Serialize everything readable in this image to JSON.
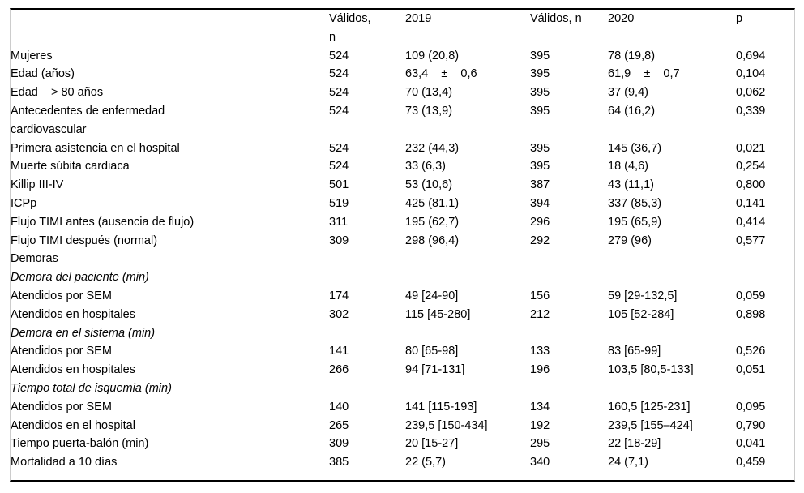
{
  "colors": {
    "rule": "#000000",
    "frame_border": "#cccccc",
    "text": "#000000",
    "background": "#ffffff"
  },
  "table": {
    "headers": {
      "label": "",
      "valid1": "Válidos,\nn",
      "y2019": "2019",
      "valid2": "Válidos, n",
      "y2020": "2020",
      "p": "p"
    },
    "rows": [
      {
        "label": "Mujeres",
        "style": "bold",
        "indent": 0,
        "valid1": "524",
        "y2019": "109 (20,8)",
        "valid2": "395",
        "y2020": "78 (19,8)",
        "p": "0,694"
      },
      {
        "label": "Edad (años)",
        "style": "bold",
        "indent": 0,
        "valid1": "524",
        "y2019": "63,4    ±    0,6",
        "valid2": "395",
        "y2020": "61,9    ±    0,7",
        "p": "0,104"
      },
      {
        "label": "Edad    > 80 años",
        "style": "bold",
        "indent": 0,
        "valid1": "524",
        "y2019": "70 (13,4)",
        "valid2": "395",
        "y2020": "37 (9,4)",
        "p": "0,062"
      },
      {
        "label": "Antecedentes de enfermedad\ncardiovascular",
        "style": "bold",
        "indent": 0,
        "valid1": "524",
        "y2019": "73 (13,9)",
        "valid2": "395",
        "y2020": "64 (16,2)",
        "p": "0,339"
      },
      {
        "label": "Primera asistencia en el hospital",
        "style": "bold",
        "indent": 0,
        "valid1": "524",
        "y2019": "232 (44,3)",
        "valid2": "395",
        "y2020": "145 (36,7)",
        "p": "0,021"
      },
      {
        "label": "Muerte súbita cardiaca",
        "style": "bold",
        "indent": 0,
        "valid1": "524",
        "y2019": "33 (6,3)",
        "valid2": "395",
        "y2020": "18 (4,6)",
        "p": "0,254"
      },
      {
        "label": "Killip III-IV",
        "style": "bold",
        "indent": 0,
        "valid1": "501",
        "y2019": "53 (10,6)",
        "valid2": "387",
        "y2020": "43 (11,1)",
        "p": "0,800"
      },
      {
        "label": "ICPp",
        "style": "bold",
        "indent": 0,
        "valid1": "519",
        "y2019": "425 (81,1)",
        "valid2": "394",
        "y2020": "337 (85,3)",
        "p": "0,141"
      },
      {
        "label": "Flujo TIMI antes (ausencia de flujo)",
        "style": "bold",
        "indent": 0,
        "valid1": "311",
        "y2019": "195 (62,7)",
        "valid2": "296",
        "y2020": "195 (65,9)",
        "p": "0,414"
      },
      {
        "label": "Flujo TIMI después (normal)",
        "style": "bold",
        "indent": 0,
        "valid1": "309",
        "y2019": "298 (96,4)",
        "valid2": "292",
        "y2020": "279 (96)",
        "p": "0,577"
      },
      {
        "label": "Demoras",
        "style": "bold",
        "indent": 0,
        "valid1": "",
        "y2019": "",
        "valid2": "",
        "y2020": "",
        "p": ""
      },
      {
        "label": "Demora del paciente (min)",
        "style": "italic",
        "indent": 1,
        "valid1": "",
        "y2019": "",
        "valid2": "",
        "y2020": "",
        "p": ""
      },
      {
        "label": "Atendidos por SEM",
        "style": "plain",
        "indent": 2,
        "valid1": "174",
        "y2019": "49 [24-90]",
        "valid2": "156",
        "y2020": "59 [29-132,5]",
        "p": "0,059"
      },
      {
        "label": "Atendidos en hospitales",
        "style": "plain",
        "indent": 2,
        "valid1": "302",
        "y2019": "115 [45-280]",
        "valid2": "212",
        "y2020": "105 [52-284]",
        "p": "0,898"
      },
      {
        "label": "Demora en el sistema (min)",
        "style": "italic",
        "indent": 1,
        "valid1": "",
        "y2019": "",
        "valid2": "",
        "y2020": "",
        "p": ""
      },
      {
        "label": "Atendidos por SEM",
        "style": "plain",
        "indent": 2,
        "valid1": "141",
        "y2019": "80 [65-98]",
        "valid2": "133",
        "y2020": "83 [65-99]",
        "p": "0,526"
      },
      {
        "label": "Atendidos en hospitales",
        "style": "plain",
        "indent": 2,
        "valid1": "266",
        "y2019": "94 [71-131]",
        "valid2": "196",
        "y2020": "103,5 [80,5-133]",
        "p": "0,051"
      },
      {
        "label": "Tiempo total de isquemia (min)",
        "style": "italic",
        "indent": 1,
        "valid1": "",
        "y2019": "",
        "valid2": "",
        "y2020": "",
        "p": ""
      },
      {
        "label": "Atendidos por SEM",
        "style": "plain",
        "indent": 2,
        "valid1": "140",
        "y2019": "141 [115-193]",
        "valid2": "134",
        "y2020": "160,5 [125-231]",
        "p": "0,095"
      },
      {
        "label": "Atendidos en el hospital",
        "style": "plain",
        "indent": 2,
        "valid1": "265",
        "y2019": "239,5 [150-434]",
        "valid2": "192",
        "y2020": "239,5 [155–424]",
        "p": "0,790"
      },
      {
        "label": "Tiempo puerta-balón (min)",
        "style": "bold",
        "indent": 0,
        "valid1": "309",
        "y2019": "20 [15-27]",
        "valid2": "295",
        "y2020": "22 [18-29]",
        "p": "0,041"
      },
      {
        "label": "Mortalidad a 10 días",
        "style": "bold",
        "indent": 0,
        "valid1": "385",
        "y2019": "22 (5,7)",
        "valid2": "340",
        "y2020": "24 (7,1)",
        "p": "0,459"
      }
    ]
  }
}
